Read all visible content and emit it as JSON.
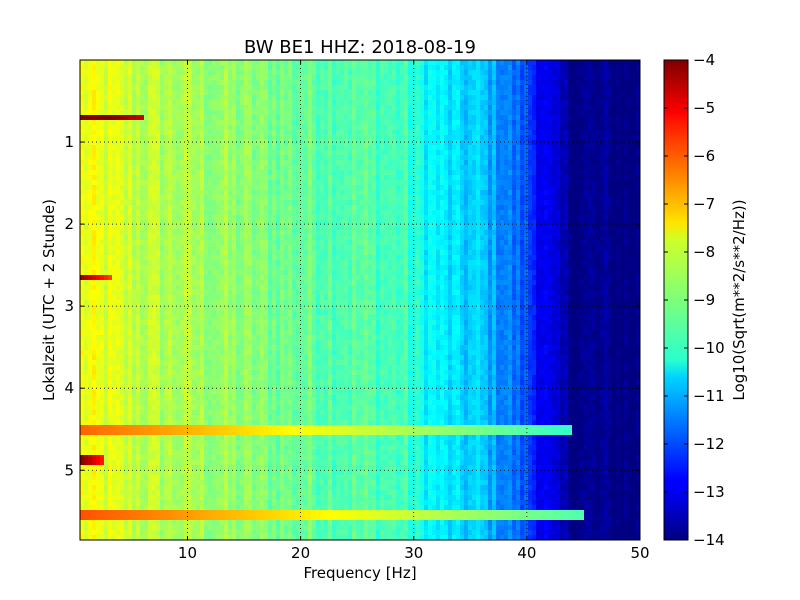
{
  "chart_data": {
    "type": "heatmap",
    "title": "BW BE1 HHZ: 2018-08-19",
    "xlabel": "Frequency [Hz]",
    "ylabel": "Lokalzeit (UTC + 2 Stunde)",
    "xlim": [
      0.5,
      50
    ],
    "ylim": [
      5.85,
      0
    ],
    "y_inverted": true,
    "xticks": [
      10,
      20,
      30,
      40,
      50
    ],
    "yticks": [
      1,
      2,
      3,
      4,
      5
    ],
    "grid": true,
    "grid_style": "dotted",
    "colormap": "jet",
    "colorbar": {
      "label": "Log10(Sqrt(m**2/s**2/Hz))",
      "range": [
        -14,
        -4
      ],
      "ticks": [
        -4,
        -5,
        -6,
        -7,
        -8,
        -9,
        -10,
        -11,
        -12,
        -13,
        -14
      ]
    },
    "spectrum_profile": [
      {
        "f": 0.5,
        "v": -7.9
      },
      {
        "f": 3,
        "v": -8.1
      },
      {
        "f": 6,
        "v": -8.4
      },
      {
        "f": 10,
        "v": -8.6
      },
      {
        "f": 15,
        "v": -8.9
      },
      {
        "f": 20,
        "v": -9.2
      },
      {
        "f": 25,
        "v": -9.4
      },
      {
        "f": 29,
        "v": -9.6
      },
      {
        "f": 31,
        "v": -10.2
      },
      {
        "f": 34,
        "v": -10.7
      },
      {
        "f": 36,
        "v": -10.8
      },
      {
        "f": 38,
        "v": -11.4
      },
      {
        "f": 40,
        "v": -12.0
      },
      {
        "f": 41.5,
        "v": -12.9
      },
      {
        "f": 43,
        "v": -13.6
      },
      {
        "f": 45,
        "v": -13.9
      },
      {
        "f": 50,
        "v": -14.0
      }
    ],
    "horizontal_events": [
      {
        "t": 0.7,
        "f_max": 6,
        "peak": -5.0
      },
      {
        "t": 2.65,
        "f_max": 3.5,
        "peak": -6.4
      },
      {
        "t": 4.5,
        "f_max": 44,
        "peak": -10.3
      },
      {
        "t": 4.85,
        "f_max": 2.5,
        "peak": -5.8
      },
      {
        "t": 5.55,
        "f_max": 45,
        "peak": -10.0
      }
    ],
    "spectral_lines": [
      {
        "f": 35.7,
        "v": -10.5
      }
    ]
  }
}
